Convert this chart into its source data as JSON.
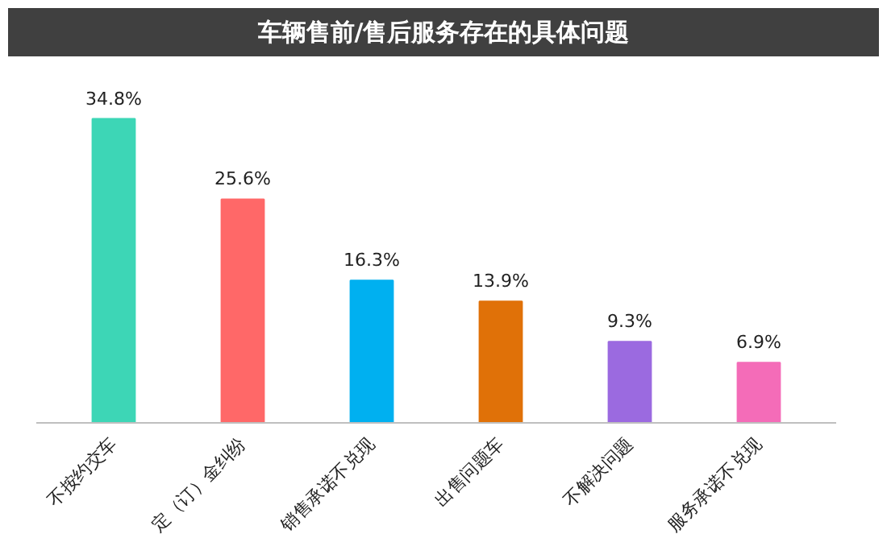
{
  "chart_data": {
    "type": "bar",
    "title": "车辆售前/售后服务存在的具体问题",
    "categories": [
      "不按约交车",
      "定（订）金纠纷",
      "销售承诺不兑现",
      "出售问题车",
      "不解决问题",
      "服务承诺不兑现"
    ],
    "values": [
      34.8,
      25.6,
      16.3,
      13.9,
      9.3,
      6.9
    ],
    "colors": [
      "#3dd6b6",
      "#ff6868",
      "#00b0f0",
      "#e07108",
      "#9b6ae0",
      "#f46cb8"
    ],
    "value_labels": [
      "34.8%",
      "25.6%",
      "16.3%",
      "13.9%",
      "9.3%",
      "6.9%"
    ],
    "grid": false
  }
}
